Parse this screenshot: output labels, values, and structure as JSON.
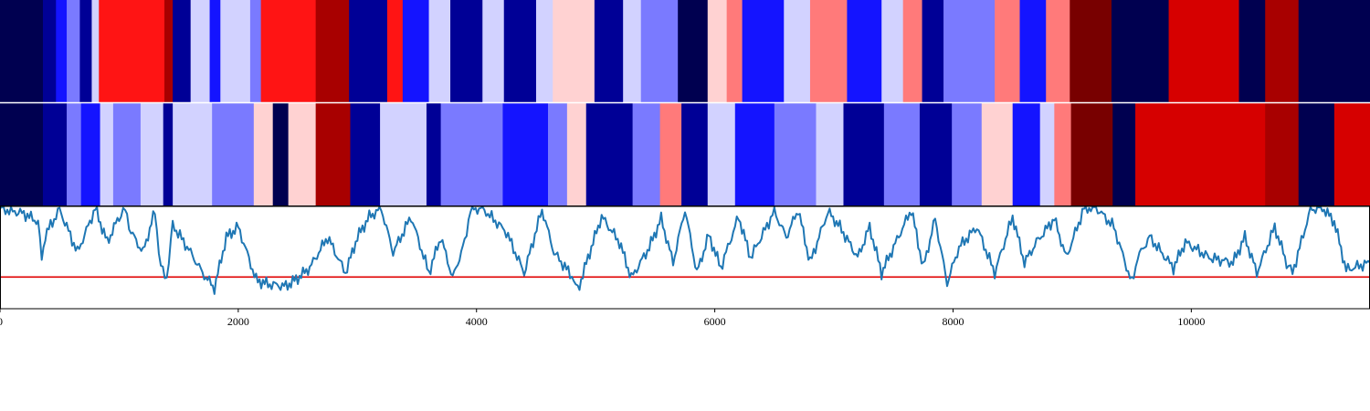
{
  "chart_data": [
    {
      "type": "heatmap",
      "panel": "top",
      "x_range": [
        0,
        11500
      ],
      "colors": {
        "navy": "#000050",
        "darkblue": "#000096",
        "blue": "#1414ff",
        "medblue": "#7a7aff",
        "lightblue": "#d2d2ff",
        "lightpink": "#ffd2d2",
        "salmon": "#ff7a7a",
        "red": "#ff1414",
        "darkred": "#d60000",
        "crimson": "#a80000",
        "maroon": "#780000"
      },
      "segments": [
        {
          "x0": 0,
          "x1": 360,
          "color": "navy"
        },
        {
          "x0": 360,
          "x1": 470,
          "color": "darkblue"
        },
        {
          "x0": 470,
          "x1": 560,
          "color": "blue"
        },
        {
          "x0": 560,
          "x1": 670,
          "color": "medblue"
        },
        {
          "x0": 670,
          "x1": 770,
          "color": "darkblue"
        },
        {
          "x0": 770,
          "x1": 830,
          "color": "lightblue"
        },
        {
          "x0": 830,
          "x1": 1380,
          "color": "red"
        },
        {
          "x0": 1380,
          "x1": 1450,
          "color": "crimson"
        },
        {
          "x0": 1450,
          "x1": 1600,
          "color": "darkblue"
        },
        {
          "x0": 1600,
          "x1": 1760,
          "color": "lightblue"
        },
        {
          "x0": 1760,
          "x1": 1850,
          "color": "blue"
        },
        {
          "x0": 1850,
          "x1": 2100,
          "color": "lightblue"
        },
        {
          "x0": 2100,
          "x1": 2190,
          "color": "medblue"
        },
        {
          "x0": 2190,
          "x1": 2650,
          "color": "red"
        },
        {
          "x0": 2650,
          "x1": 2930,
          "color": "crimson"
        },
        {
          "x0": 2930,
          "x1": 3250,
          "color": "darkblue"
        },
        {
          "x0": 3250,
          "x1": 3380,
          "color": "red"
        },
        {
          "x0": 3380,
          "x1": 3600,
          "color": "blue"
        },
        {
          "x0": 3600,
          "x1": 3780,
          "color": "lightblue"
        },
        {
          "x0": 3780,
          "x1": 4050,
          "color": "darkblue"
        },
        {
          "x0": 4050,
          "x1": 4230,
          "color": "lightblue"
        },
        {
          "x0": 4230,
          "x1": 4500,
          "color": "darkblue"
        },
        {
          "x0": 4500,
          "x1": 4640,
          "color": "lightblue"
        },
        {
          "x0": 4640,
          "x1": 4990,
          "color": "lightpink"
        },
        {
          "x0": 4990,
          "x1": 5230,
          "color": "darkblue"
        },
        {
          "x0": 5230,
          "x1": 5380,
          "color": "lightblue"
        },
        {
          "x0": 5380,
          "x1": 5690,
          "color": "medblue"
        },
        {
          "x0": 5690,
          "x1": 5940,
          "color": "navy"
        },
        {
          "x0": 5940,
          "x1": 6100,
          "color": "lightpink"
        },
        {
          "x0": 6100,
          "x1": 6230,
          "color": "salmon"
        },
        {
          "x0": 6230,
          "x1": 6580,
          "color": "blue"
        },
        {
          "x0": 6580,
          "x1": 6800,
          "color": "lightblue"
        },
        {
          "x0": 6800,
          "x1": 7110,
          "color": "salmon"
        },
        {
          "x0": 7110,
          "x1": 7400,
          "color": "blue"
        },
        {
          "x0": 7400,
          "x1": 7580,
          "color": "lightblue"
        },
        {
          "x0": 7580,
          "x1": 7740,
          "color": "salmon"
        },
        {
          "x0": 7740,
          "x1": 7920,
          "color": "darkblue"
        },
        {
          "x0": 7920,
          "x1": 8350,
          "color": "medblue"
        },
        {
          "x0": 8350,
          "x1": 8560,
          "color": "salmon"
        },
        {
          "x0": 8560,
          "x1": 8780,
          "color": "blue"
        },
        {
          "x0": 8780,
          "x1": 8980,
          "color": "salmon"
        },
        {
          "x0": 8980,
          "x1": 9330,
          "color": "maroon"
        },
        {
          "x0": 9330,
          "x1": 9810,
          "color": "navy"
        },
        {
          "x0": 9810,
          "x1": 10400,
          "color": "darkred"
        },
        {
          "x0": 10400,
          "x1": 10620,
          "color": "navy"
        },
        {
          "x0": 10620,
          "x1": 10900,
          "color": "crimson"
        },
        {
          "x0": 10900,
          "x1": 11500,
          "color": "navy"
        }
      ]
    },
    {
      "type": "heatmap",
      "panel": "middle",
      "x_range": [
        0,
        11500
      ],
      "segments": [
        {
          "x0": 0,
          "x1": 360,
          "color": "navy"
        },
        {
          "x0": 360,
          "x1": 560,
          "color": "darkblue"
        },
        {
          "x0": 560,
          "x1": 680,
          "color": "medblue"
        },
        {
          "x0": 680,
          "x1": 840,
          "color": "blue"
        },
        {
          "x0": 840,
          "x1": 950,
          "color": "lightblue"
        },
        {
          "x0": 950,
          "x1": 1180,
          "color": "medblue"
        },
        {
          "x0": 1180,
          "x1": 1370,
          "color": "lightblue"
        },
        {
          "x0": 1370,
          "x1": 1450,
          "color": "darkblue"
        },
        {
          "x0": 1450,
          "x1": 1780,
          "color": "lightblue"
        },
        {
          "x0": 1780,
          "x1": 2130,
          "color": "medblue"
        },
        {
          "x0": 2130,
          "x1": 2290,
          "color": "lightpink"
        },
        {
          "x0": 2290,
          "x1": 2420,
          "color": "navy"
        },
        {
          "x0": 2420,
          "x1": 2650,
          "color": "lightpink"
        },
        {
          "x0": 2650,
          "x1": 2940,
          "color": "crimson"
        },
        {
          "x0": 2940,
          "x1": 3190,
          "color": "darkblue"
        },
        {
          "x0": 3190,
          "x1": 3580,
          "color": "lightblue"
        },
        {
          "x0": 3580,
          "x1": 3700,
          "color": "darkblue"
        },
        {
          "x0": 3700,
          "x1": 4220,
          "color": "medblue"
        },
        {
          "x0": 4220,
          "x1": 4600,
          "color": "blue"
        },
        {
          "x0": 4600,
          "x1": 4760,
          "color": "medblue"
        },
        {
          "x0": 4760,
          "x1": 4920,
          "color": "lightpink"
        },
        {
          "x0": 4920,
          "x1": 5310,
          "color": "darkblue"
        },
        {
          "x0": 5310,
          "x1": 5540,
          "color": "medblue"
        },
        {
          "x0": 5540,
          "x1": 5720,
          "color": "salmon"
        },
        {
          "x0": 5720,
          "x1": 5940,
          "color": "darkblue"
        },
        {
          "x0": 5940,
          "x1": 6170,
          "color": "lightblue"
        },
        {
          "x0": 6170,
          "x1": 6500,
          "color": "blue"
        },
        {
          "x0": 6500,
          "x1": 6850,
          "color": "medblue"
        },
        {
          "x0": 6850,
          "x1": 7080,
          "color": "lightblue"
        },
        {
          "x0": 7080,
          "x1": 7420,
          "color": "darkblue"
        },
        {
          "x0": 7420,
          "x1": 7720,
          "color": "medblue"
        },
        {
          "x0": 7720,
          "x1": 7990,
          "color": "darkblue"
        },
        {
          "x0": 7990,
          "x1": 8240,
          "color": "medblue"
        },
        {
          "x0": 8240,
          "x1": 8500,
          "color": "lightpink"
        },
        {
          "x0": 8500,
          "x1": 8730,
          "color": "blue"
        },
        {
          "x0": 8730,
          "x1": 8850,
          "color": "lightblue"
        },
        {
          "x0": 8850,
          "x1": 8990,
          "color": "salmon"
        },
        {
          "x0": 8990,
          "x1": 9340,
          "color": "maroon"
        },
        {
          "x0": 9340,
          "x1": 9530,
          "color": "navy"
        },
        {
          "x0": 9530,
          "x1": 10620,
          "color": "darkred"
        },
        {
          "x0": 10620,
          "x1": 10900,
          "color": "crimson"
        },
        {
          "x0": 10900,
          "x1": 11200,
          "color": "navy"
        },
        {
          "x0": 11200,
          "x1": 11500,
          "color": "darkred"
        }
      ]
    },
    {
      "type": "line",
      "panel": "bottom",
      "x_range": [
        0,
        11500
      ],
      "y_range": [
        0,
        1
      ],
      "line_color": "#1f77b4",
      "threshold": 0.31,
      "threshold_color": "#e00000",
      "x_ticks": [
        0,
        2000,
        4000,
        6000,
        8000,
        10000
      ],
      "x_tick_labels": [
        "0",
        "2000",
        "4000",
        "6000",
        "8000",
        "10000"
      ],
      "series": [
        {
          "x": [
            0,
            200,
            320,
            350,
            380,
            500,
            650,
            800,
            900,
            1000,
            1050,
            1100,
            1200,
            1300,
            1350,
            1400,
            1450,
            1600,
            1700,
            1800,
            1900,
            2000,
            2150,
            2250,
            2400,
            2500,
            2600,
            2750,
            2900,
            3000,
            3100,
            3200,
            3300,
            3450,
            3600,
            3700,
            3800,
            3900,
            3950,
            4050,
            4250,
            4400,
            4550,
            4650,
            4800,
            4850,
            4950,
            5050,
            5200,
            5300,
            5450,
            5550,
            5650,
            5750,
            5850,
            5950,
            6050,
            6200,
            6300,
            6500,
            6600,
            6700,
            6800,
            6950,
            7050,
            7200,
            7300,
            7400,
            7500,
            7650,
            7750,
            7850,
            7950,
            8050,
            8200,
            8350,
            8500,
            8600,
            8700,
            8850,
            8950,
            9100,
            9200,
            9350,
            9500,
            9550,
            9650,
            9850,
            9950,
            10150,
            10350,
            10450,
            10550,
            10700,
            10800,
            10850,
            11000,
            11100,
            11200,
            11300,
            11500
          ],
          "y": [
            0.98,
            0.93,
            0.85,
            0.48,
            0.72,
            0.97,
            0.55,
            0.98,
            0.65,
            0.9,
            0.97,
            0.75,
            0.55,
            0.95,
            0.4,
            0.3,
            0.82,
            0.55,
            0.35,
            0.2,
            0.7,
            0.8,
            0.28,
            0.24,
            0.22,
            0.3,
            0.4,
            0.7,
            0.35,
            0.7,
            0.9,
            0.98,
            0.55,
            0.9,
            0.35,
            0.7,
            0.3,
            0.65,
            0.97,
            0.98,
            0.75,
            0.35,
            0.97,
            0.55,
            0.32,
            0.18,
            0.55,
            0.9,
            0.65,
            0.3,
            0.6,
            0.88,
            0.45,
            0.97,
            0.35,
            0.72,
            0.4,
            0.9,
            0.5,
            0.95,
            0.7,
            0.97,
            0.45,
            0.95,
            0.8,
            0.5,
            0.8,
            0.35,
            0.6,
            0.97,
            0.4,
            0.88,
            0.25,
            0.6,
            0.8,
            0.35,
            0.9,
            0.45,
            0.65,
            0.88,
            0.5,
            0.98,
            0.99,
            0.8,
            0.25,
            0.5,
            0.7,
            0.4,
            0.65,
            0.5,
            0.45,
            0.7,
            0.35,
            0.8,
            0.45,
            0.35,
            0.97,
            0.99,
            0.85,
            0.38,
            0.45
          ]
        }
      ]
    }
  ]
}
